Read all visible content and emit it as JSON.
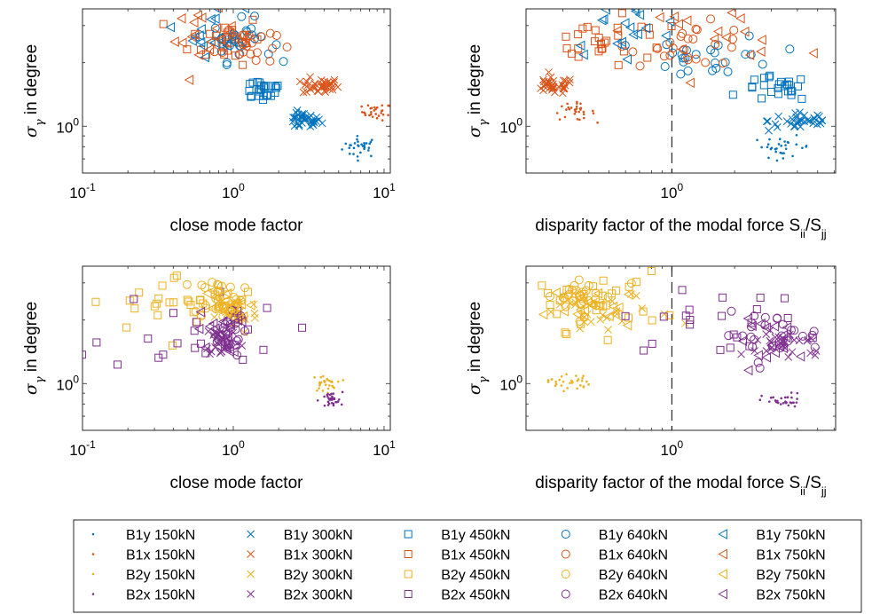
{
  "colors": {
    "blue": "#0072BD",
    "orange": "#D95319",
    "yellow": "#EDB120",
    "purple": "#7E2F8E"
  },
  "chart_data": [
    {
      "type": "scatter",
      "panel": "top-left",
      "xlabel": "close mode factor",
      "ylabel": "σ_γ in degree",
      "xscale": "log",
      "yscale": "log",
      "xlim": [
        0.1,
        11
      ],
      "ylim": [
        0.6,
        3.6
      ],
      "xticks": [
        {
          "v": 0.1,
          "b": "10",
          "e": "-1"
        },
        {
          "v": 1,
          "b": "10",
          "e": "0"
        },
        {
          "v": 10,
          "b": "10",
          "e": "1"
        }
      ],
      "yticks": [
        {
          "v": 1,
          "b": "10",
          "e": "0"
        }
      ],
      "ref_line": null,
      "grid": false,
      "clusters": [
        {
          "series": "B1y 150kN",
          "cx": 7.0,
          "cy": 0.8,
          "sx": 0.06,
          "sy": 0.025,
          "n": 30
        },
        {
          "series": "B1x 150kN",
          "cx": 9.0,
          "cy": 1.17,
          "sx": 0.05,
          "sy": 0.02,
          "n": 30
        },
        {
          "series": "B1y 300kN",
          "cx": 2.9,
          "cy": 1.06,
          "sx": 0.06,
          "sy": 0.02,
          "n": 35
        },
        {
          "series": "B1x 300kN",
          "cx": 3.8,
          "cy": 1.55,
          "sx": 0.06,
          "sy": 0.02,
          "n": 35
        },
        {
          "series": "B1y 450kN",
          "cx": 1.55,
          "cy": 1.5,
          "sx": 0.08,
          "sy": 0.03,
          "n": 25
        },
        {
          "series": "B1x 450kN",
          "cx": 0.9,
          "cy": 2.6,
          "sx": 0.12,
          "sy": 0.06,
          "n": 25
        },
        {
          "series": "B1y 640kN",
          "cx": 1.15,
          "cy": 2.55,
          "sx": 0.1,
          "sy": 0.05,
          "n": 25
        },
        {
          "series": "B1x 640kN",
          "cx": 1.2,
          "cy": 2.45,
          "sx": 0.1,
          "sy": 0.05,
          "n": 25
        },
        {
          "series": "B1y 750kN",
          "cx": 0.75,
          "cy": 2.85,
          "sx": 0.1,
          "sy": 0.06,
          "n": 18
        },
        {
          "series": "B1x 750kN",
          "cx": 0.65,
          "cy": 2.65,
          "sx": 0.1,
          "sy": 0.06,
          "n": 18
        }
      ]
    },
    {
      "type": "scatter",
      "panel": "top-right",
      "xlabel": "disparity factor of the modal force S_ii/S_jj",
      "ylabel": "σ_γ in degree",
      "xscale": "log",
      "yscale": "log",
      "xlim": [
        0.2,
        6.1
      ],
      "ylim": [
        0.6,
        3.6
      ],
      "xticks": [
        {
          "v": 1,
          "b": "10",
          "e": "0"
        }
      ],
      "yticks": [
        {
          "v": 1,
          "b": "10",
          "e": "0"
        }
      ],
      "ref_line": {
        "x": 1
      },
      "grid": false,
      "clusters": [
        {
          "series": "B1y 150kN",
          "cx": 3.4,
          "cy": 0.8,
          "sx": 0.07,
          "sy": 0.025,
          "n": 30
        },
        {
          "series": "B1x 150kN",
          "cx": 0.34,
          "cy": 1.17,
          "sx": 0.05,
          "sy": 0.02,
          "n": 30
        },
        {
          "series": "B1y 300kN",
          "cx": 4.2,
          "cy": 1.06,
          "sx": 0.08,
          "sy": 0.025,
          "n": 35
        },
        {
          "series": "B1x 300kN",
          "cx": 0.27,
          "cy": 1.55,
          "sx": 0.05,
          "sy": 0.02,
          "n": 35
        },
        {
          "series": "B1y 450kN",
          "cx": 3.2,
          "cy": 1.5,
          "sx": 0.08,
          "sy": 0.03,
          "n": 25
        },
        {
          "series": "B1x 450kN",
          "cx": 0.5,
          "cy": 2.45,
          "sx": 0.2,
          "sy": 0.06,
          "n": 30
        },
        {
          "series": "B1y 640kN",
          "cx": 1.6,
          "cy": 2.15,
          "sx": 0.15,
          "sy": 0.05,
          "n": 25
        },
        {
          "series": "B1x 640kN",
          "cx": 1.25,
          "cy": 2.45,
          "sx": 0.15,
          "sy": 0.05,
          "n": 25
        },
        {
          "series": "B1y 750kN",
          "cx": 0.6,
          "cy": 2.9,
          "sx": 0.15,
          "sy": 0.06,
          "n": 18
        },
        {
          "series": "B1x 750kN",
          "cx": 1.6,
          "cy": 2.8,
          "sx": 0.2,
          "sy": 0.06,
          "n": 18
        }
      ]
    },
    {
      "type": "scatter",
      "panel": "bottom-left",
      "xlabel": "close mode factor",
      "ylabel": "σ_γ in degree",
      "xscale": "log",
      "yscale": "log",
      "xlim": [
        0.1,
        11
      ],
      "ylim": [
        0.6,
        3.6
      ],
      "xticks": [
        {
          "v": 0.1,
          "b": "10",
          "e": "-1"
        },
        {
          "v": 1,
          "b": "10",
          "e": "0"
        },
        {
          "v": 10,
          "b": "10",
          "e": "1"
        }
      ],
      "yticks": [
        {
          "v": 1,
          "b": "10",
          "e": "0"
        }
      ],
      "ref_line": null,
      "grid": false,
      "clusters": [
        {
          "series": "B2y 150kN",
          "cx": 4.0,
          "cy": 1.0,
          "sx": 0.04,
          "sy": 0.02,
          "n": 30
        },
        {
          "series": "B2x 150kN",
          "cx": 4.4,
          "cy": 0.83,
          "sx": 0.04,
          "sy": 0.02,
          "n": 30
        },
        {
          "series": "B2y 300kN",
          "cx": 1.05,
          "cy": 2.15,
          "sx": 0.07,
          "sy": 0.05,
          "n": 30
        },
        {
          "series": "B2x 300kN",
          "cx": 0.85,
          "cy": 1.6,
          "sx": 0.06,
          "sy": 0.04,
          "n": 30
        },
        {
          "series": "B2y 450kN",
          "cx": 0.45,
          "cy": 2.4,
          "sx": 0.3,
          "sy": 0.07,
          "n": 30
        },
        {
          "series": "B2x 450kN",
          "cx": 0.55,
          "cy": 1.8,
          "sx": 0.3,
          "sy": 0.1,
          "n": 22
        },
        {
          "series": "B2y 640kN",
          "cx": 0.8,
          "cy": 2.6,
          "sx": 0.08,
          "sy": 0.05,
          "n": 30
        },
        {
          "series": "B2x 640kN",
          "cx": 0.9,
          "cy": 1.7,
          "sx": 0.06,
          "sy": 0.05,
          "n": 25
        },
        {
          "series": "B2y 750kN",
          "cx": 0.85,
          "cy": 2.25,
          "sx": 0.08,
          "sy": 0.05,
          "n": 18
        },
        {
          "series": "B2x 750kN",
          "cx": 0.8,
          "cy": 1.75,
          "sx": 0.07,
          "sy": 0.05,
          "n": 18
        }
      ]
    },
    {
      "type": "scatter",
      "panel": "bottom-right",
      "xlabel": "disparity factor of the modal force S_ii/S_jj",
      "ylabel": "σ_γ in degree",
      "xscale": "log",
      "yscale": "log",
      "xlim": [
        0.2,
        6.1
      ],
      "ylim": [
        0.6,
        3.6
      ],
      "xticks": [
        {
          "v": 1,
          "b": "10",
          "e": "0"
        }
      ],
      "yticks": [
        {
          "v": 1,
          "b": "10",
          "e": "0"
        }
      ],
      "ref_line": {
        "x": 1
      },
      "grid": false,
      "clusters": [
        {
          "series": "B2y 150kN",
          "cx": 0.32,
          "cy": 1.02,
          "sx": 0.05,
          "sy": 0.02,
          "n": 30
        },
        {
          "series": "B2x 150kN",
          "cx": 3.4,
          "cy": 0.82,
          "sx": 0.05,
          "sy": 0.02,
          "n": 30
        },
        {
          "series": "B2y 300kN",
          "cx": 0.45,
          "cy": 2.15,
          "sx": 0.18,
          "sy": 0.05,
          "n": 30
        },
        {
          "series": "B2x 300kN",
          "cx": 3.6,
          "cy": 1.55,
          "sx": 0.1,
          "sy": 0.04,
          "n": 30
        },
        {
          "series": "B2y 450kN",
          "cx": 0.4,
          "cy": 2.45,
          "sx": 0.18,
          "sy": 0.07,
          "n": 30
        },
        {
          "series": "B2x 450kN",
          "cx": 1.6,
          "cy": 1.95,
          "sx": 0.22,
          "sy": 0.07,
          "n": 22
        },
        {
          "series": "B2y 640kN",
          "cx": 0.35,
          "cy": 2.6,
          "sx": 0.1,
          "sy": 0.05,
          "n": 30
        },
        {
          "series": "B2x 640kN",
          "cx": 3.0,
          "cy": 1.7,
          "sx": 0.12,
          "sy": 0.05,
          "n": 25
        },
        {
          "series": "B2y 750kN",
          "cx": 0.45,
          "cy": 2.25,
          "sx": 0.12,
          "sy": 0.05,
          "n": 18
        },
        {
          "series": "B2x 750kN",
          "cx": 3.2,
          "cy": 1.6,
          "sx": 0.1,
          "sy": 0.05,
          "n": 18
        }
      ]
    }
  ],
  "legend": {
    "placement": "bottom",
    "entries": [
      {
        "label": "B1y 150kN",
        "marker": "dot",
        "color": "blue"
      },
      {
        "label": "B1y 300kN",
        "marker": "x",
        "color": "blue"
      },
      {
        "label": "B1y 450kN",
        "marker": "square",
        "color": "blue"
      },
      {
        "label": "B1y 640kN",
        "marker": "circle",
        "color": "blue"
      },
      {
        "label": "B1y 750kN",
        "marker": "triangle-left",
        "color": "blue"
      },
      {
        "label": "B1x 150kN",
        "marker": "dot",
        "color": "orange"
      },
      {
        "label": "B1x 300kN",
        "marker": "x",
        "color": "orange"
      },
      {
        "label": "B1x 450kN",
        "marker": "square",
        "color": "orange"
      },
      {
        "label": "B1x 640kN",
        "marker": "circle",
        "color": "orange"
      },
      {
        "label": "B1x 750kN",
        "marker": "triangle-left",
        "color": "orange"
      },
      {
        "label": "B2y 150kN",
        "marker": "dot",
        "color": "yellow"
      },
      {
        "label": "B2y 300kN",
        "marker": "x",
        "color": "yellow"
      },
      {
        "label": "B2y 450kN",
        "marker": "square",
        "color": "yellow"
      },
      {
        "label": "B2y 640kN",
        "marker": "circle",
        "color": "yellow"
      },
      {
        "label": "B2y 750kN",
        "marker": "triangle-left",
        "color": "yellow"
      },
      {
        "label": "B2x 150kN",
        "marker": "dot",
        "color": "purple"
      },
      {
        "label": "B2x 300kN",
        "marker": "x",
        "color": "purple"
      },
      {
        "label": "B2x 450kN",
        "marker": "square",
        "color": "purple"
      },
      {
        "label": "B2x 640kN",
        "marker": "circle",
        "color": "purple"
      },
      {
        "label": "B2x 750kN",
        "marker": "triangle-left",
        "color": "purple"
      }
    ]
  }
}
